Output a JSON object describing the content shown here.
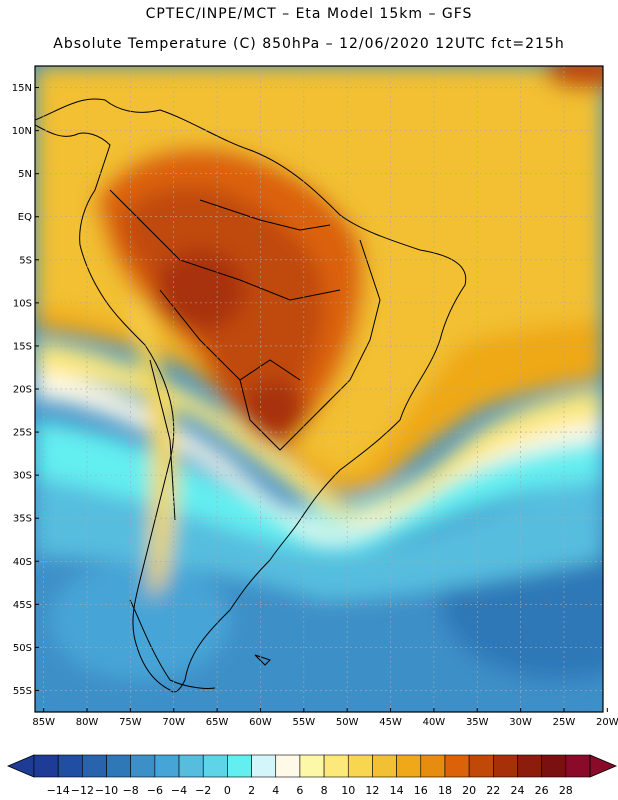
{
  "header": {
    "line1": "CPTEC/INPE/MCT –  Eta Model 15km – GFS",
    "line2": "Absolute Temperature (C) 850hPa – 12/06/2020 12UTC fct=215h"
  },
  "map": {
    "lat_labels": [
      "15N",
      "10N",
      "5N",
      "EQ",
      "5S",
      "10S",
      "15S",
      "20S",
      "25S",
      "30S",
      "35S",
      "40S",
      "45S",
      "50S",
      "55S"
    ],
    "lon_labels": [
      "85W",
      "80W",
      "75W",
      "70W",
      "65W",
      "60W",
      "55W",
      "50W",
      "45W",
      "40W",
      "35W",
      "30W",
      "25W",
      "20W"
    ],
    "lat_range": [
      17.5,
      -57.5
    ],
    "lon_range": [
      -86,
      -20.5
    ]
  },
  "colorbar": {
    "labels": [
      "-14",
      "-12",
      "-10",
      "-8",
      "-6",
      "-4",
      "-2",
      "0",
      "2",
      "4",
      "6",
      "8",
      "10",
      "12",
      "14",
      "16",
      "18",
      "20",
      "22",
      "24",
      "26",
      "28"
    ],
    "colors": [
      "#1e3c96",
      "#1f4ea3",
      "#2863ad",
      "#2f78b8",
      "#3d8fc8",
      "#47a4d6",
      "#57bddf",
      "#5fd3e8",
      "#63eef0",
      "#d2f6fa",
      "#fff9e8",
      "#fdf8a8",
      "#fde87c",
      "#f8d650",
      "#f2c033",
      "#efa818",
      "#e68c0e",
      "#db6208",
      "#c04808",
      "#a83008",
      "#8c1c0c",
      "#7a1010",
      "#8a0a2a"
    ]
  }
}
